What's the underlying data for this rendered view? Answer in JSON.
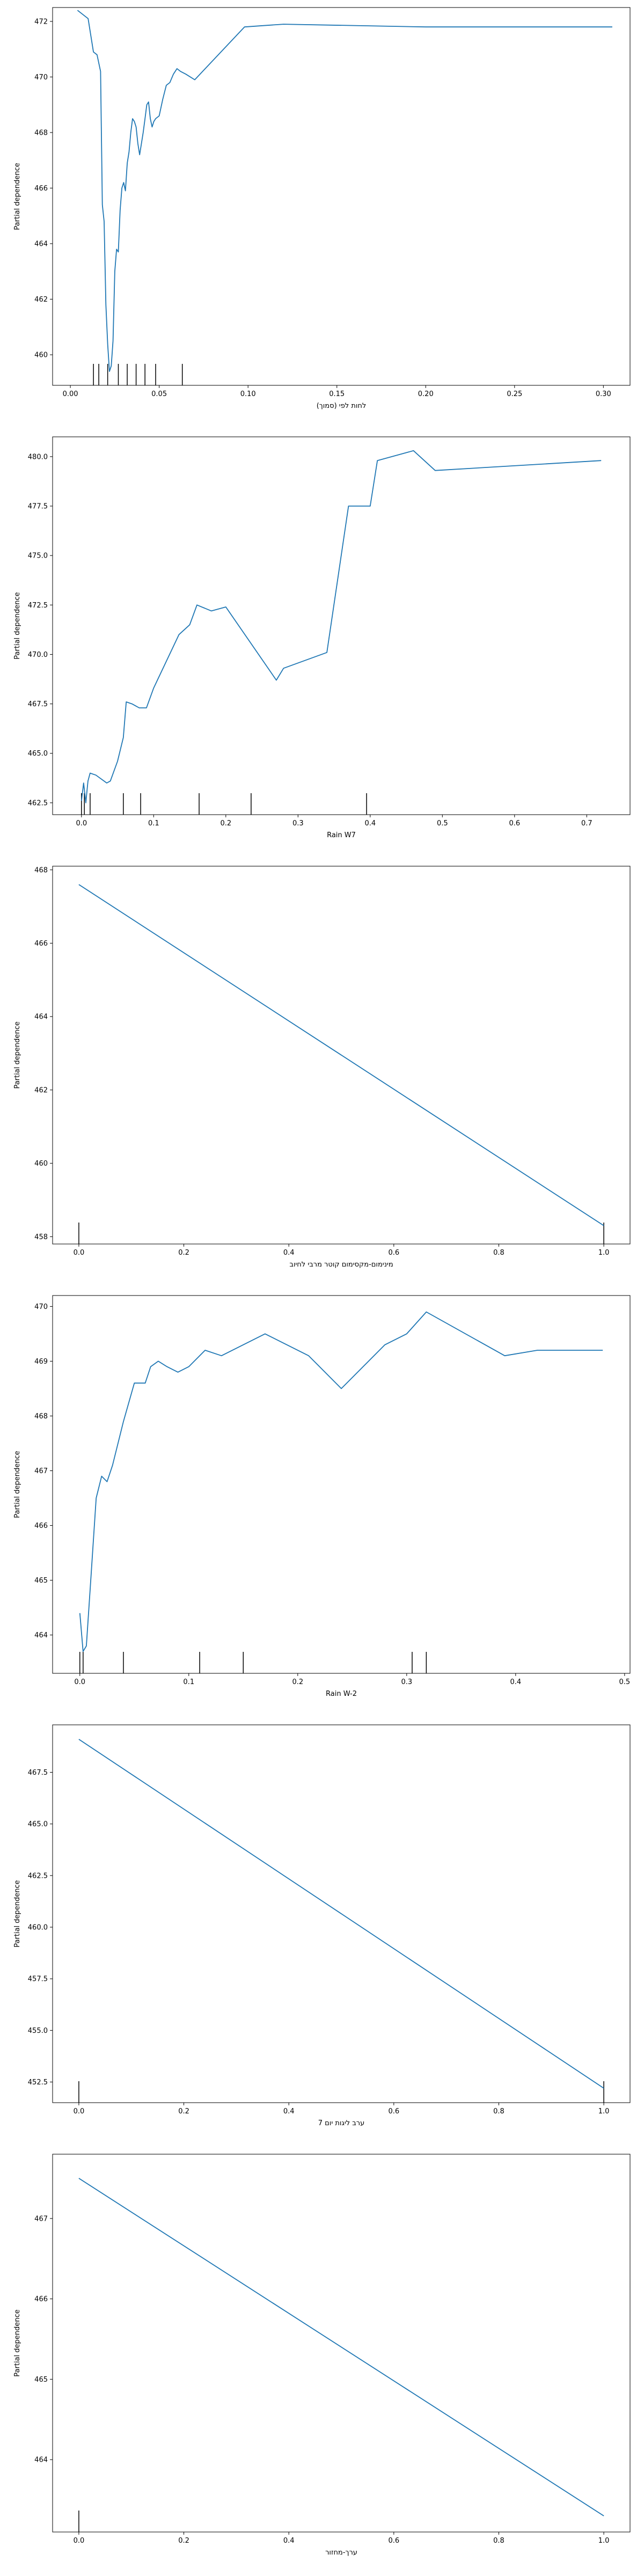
{
  "style": {
    "line_color": "#1f77b4",
    "rug_color": "#000000",
    "axis_color": "#000000",
    "background": "#ffffff"
  },
  "chart_data": [
    {
      "type": "line",
      "xlabel": "(סמוך) לחות לפי",
      "ylabel": "Partial dependence",
      "xlim": [
        -0.01,
        0.315
      ],
      "ylim": [
        458.9,
        472.5
      ],
      "xticks": [
        0.0,
        0.05,
        0.1,
        0.15,
        0.2,
        0.25,
        0.3
      ],
      "xtick_labels": [
        "0.00",
        "0.05",
        "0.10",
        "0.15",
        "0.20",
        "0.25",
        "0.30"
      ],
      "yticks": [
        460,
        462,
        464,
        466,
        468,
        470,
        472
      ],
      "ytick_labels": [
        "460",
        "462",
        "464",
        "466",
        "468",
        "470",
        "472"
      ],
      "x": [
        0.004,
        0.01,
        0.013,
        0.015,
        0.017,
        0.018,
        0.019,
        0.02,
        0.021,
        0.022,
        0.023,
        0.024,
        0.025,
        0.026,
        0.027,
        0.028,
        0.029,
        0.03,
        0.031,
        0.032,
        0.033,
        0.034,
        0.035,
        0.036,
        0.037,
        0.038,
        0.039,
        0.04,
        0.041,
        0.042,
        0.043,
        0.044,
        0.045,
        0.046,
        0.047,
        0.048,
        0.05,
        0.052,
        0.054,
        0.056,
        0.058,
        0.06,
        0.062,
        0.065,
        0.07,
        0.098,
        0.12,
        0.2,
        0.305
      ],
      "y": [
        472.4,
        472.1,
        470.9,
        470.8,
        470.2,
        465.4,
        464.8,
        461.8,
        460.4,
        459.4,
        459.6,
        460.5,
        463.0,
        463.8,
        463.7,
        465.2,
        466.0,
        466.2,
        465.9,
        466.9,
        467.3,
        468.0,
        468.5,
        468.4,
        468.2,
        467.6,
        467.2,
        467.6,
        468.0,
        468.5,
        469.0,
        469.1,
        468.5,
        468.2,
        468.4,
        468.5,
        468.6,
        469.2,
        469.7,
        469.8,
        470.1,
        470.3,
        470.2,
        470.1,
        469.9,
        471.8,
        471.9,
        471.8,
        471.8
      ],
      "rug": [
        0.013,
        0.016,
        0.021,
        0.027,
        0.032,
        0.037,
        0.042,
        0.048,
        0.063
      ]
    },
    {
      "type": "line",
      "xlabel": "Rain W7",
      "ylabel": "Partial dependence",
      "xlim": [
        -0.04,
        0.76
      ],
      "ylim": [
        461.9,
        481.0
      ],
      "xticks": [
        0.0,
        0.1,
        0.2,
        0.3,
        0.4,
        0.5,
        0.6,
        0.7
      ],
      "xtick_labels": [
        "0.0",
        "0.1",
        "0.2",
        "0.3",
        "0.4",
        "0.5",
        "0.6",
        "0.7"
      ],
      "yticks": [
        462.5,
        465.0,
        467.5,
        470.0,
        472.5,
        475.0,
        477.5,
        480.0
      ],
      "ytick_labels": [
        "462.5",
        "465.0",
        "467.5",
        "470.0",
        "472.5",
        "475.0",
        "477.5",
        "480.0"
      ],
      "x": [
        0.0,
        0.003,
        0.006,
        0.009,
        0.012,
        0.02,
        0.035,
        0.04,
        0.05,
        0.058,
        0.062,
        0.07,
        0.08,
        0.09,
        0.1,
        0.135,
        0.15,
        0.16,
        0.18,
        0.2,
        0.27,
        0.28,
        0.34,
        0.37,
        0.4,
        0.41,
        0.46,
        0.49,
        0.72
      ],
      "y": [
        462.6,
        463.5,
        462.5,
        463.6,
        464.0,
        463.9,
        463.5,
        463.6,
        464.6,
        465.8,
        467.6,
        467.5,
        467.3,
        467.3,
        468.3,
        471.0,
        471.5,
        472.5,
        472.2,
        472.4,
        468.7,
        469.3,
        470.1,
        477.5,
        477.5,
        479.8,
        480.3,
        479.3,
        479.8
      ],
      "rug": [
        0.0,
        0.004,
        0.012,
        0.058,
        0.082,
        0.163,
        0.235,
        0.395
      ]
    },
    {
      "type": "line",
      "xlabel": "מינימום-מקסימום קוטר מרבי לחיוב",
      "ylabel": "Partial dependence",
      "xlim": [
        -0.05,
        1.05
      ],
      "ylim": [
        457.8,
        468.1
      ],
      "xticks": [
        0.0,
        0.2,
        0.4,
        0.6,
        0.8,
        1.0
      ],
      "xtick_labels": [
        "0.0",
        "0.2",
        "0.4",
        "0.6",
        "0.8",
        "1.0"
      ],
      "yticks": [
        458,
        460,
        462,
        464,
        466,
        468
      ],
      "ytick_labels": [
        "458",
        "460",
        "462",
        "464",
        "466",
        "468"
      ],
      "x": [
        0.0,
        1.0
      ],
      "y": [
        467.6,
        458.3
      ],
      "rug": [
        0.0,
        1.0
      ]
    },
    {
      "type": "line",
      "xlabel": "Rain W-2",
      "ylabel": "Partial dependence",
      "xlim": [
        -0.025,
        0.505
      ],
      "ylim": [
        463.3,
        470.2
      ],
      "xticks": [
        0.0,
        0.1,
        0.2,
        0.3,
        0.4,
        0.5
      ],
      "xtick_labels": [
        "0.0",
        "0.1",
        "0.2",
        "0.3",
        "0.4",
        "0.5"
      ],
      "yticks": [
        464,
        465,
        466,
        467,
        468,
        469,
        470
      ],
      "ytick_labels": [
        "464",
        "465",
        "466",
        "467",
        "468",
        "469",
        "470"
      ],
      "x": [
        0.0,
        0.003,
        0.006,
        0.01,
        0.015,
        0.02,
        0.025,
        0.03,
        0.04,
        0.05,
        0.06,
        0.065,
        0.072,
        0.08,
        0.09,
        0.1,
        0.115,
        0.13,
        0.15,
        0.17,
        0.19,
        0.21,
        0.24,
        0.28,
        0.3,
        0.318,
        0.39,
        0.42,
        0.48
      ],
      "y": [
        464.4,
        463.7,
        463.8,
        465.0,
        466.5,
        466.9,
        466.8,
        467.1,
        467.9,
        468.6,
        468.6,
        468.9,
        469.0,
        468.9,
        468.8,
        468.9,
        469.2,
        469.1,
        469.3,
        469.5,
        469.3,
        469.1,
        468.5,
        469.3,
        469.5,
        469.9,
        469.1,
        469.2,
        469.2
      ],
      "rug": [
        0.0,
        0.003,
        0.04,
        0.11,
        0.15,
        0.305,
        0.318
      ]
    },
    {
      "type": "line",
      "xlabel": "ערב ליגות יום 7",
      "ylabel": "Partial dependence",
      "xlim": [
        -0.05,
        1.05
      ],
      "ylim": [
        451.5,
        469.8
      ],
      "xticks": [
        0.0,
        0.2,
        0.4,
        0.6,
        0.8,
        1.0
      ],
      "xtick_labels": [
        "0.0",
        "0.2",
        "0.4",
        "0.6",
        "0.8",
        "1.0"
      ],
      "yticks": [
        452.5,
        455.0,
        457.5,
        460.0,
        462.5,
        465.0,
        467.5
      ],
      "ytick_labels": [
        "452.5",
        "455.0",
        "457.5",
        "460.0",
        "462.5",
        "465.0",
        "467.5"
      ],
      "x": [
        0.0,
        1.0
      ],
      "y": [
        469.1,
        452.2
      ],
      "rug": [
        0.0,
        1.0
      ]
    },
    {
      "type": "line",
      "xlabel": "ערך-מחזור",
      "ylabel": "Partial dependence",
      "xlim": [
        -0.05,
        1.05
      ],
      "ylim": [
        463.1,
        467.8
      ],
      "xticks": [
        0.0,
        0.2,
        0.4,
        0.6,
        0.8,
        1.0
      ],
      "xtick_labels": [
        "0.0",
        "0.2",
        "0.4",
        "0.6",
        "0.8",
        "1.0"
      ],
      "yticks": [
        464,
        465,
        466,
        467
      ],
      "ytick_labels": [
        "464",
        "465",
        "466",
        "467"
      ],
      "x": [
        0.0,
        1.0
      ],
      "y": [
        467.5,
        463.3
      ],
      "rug": [
        0.0
      ]
    }
  ]
}
